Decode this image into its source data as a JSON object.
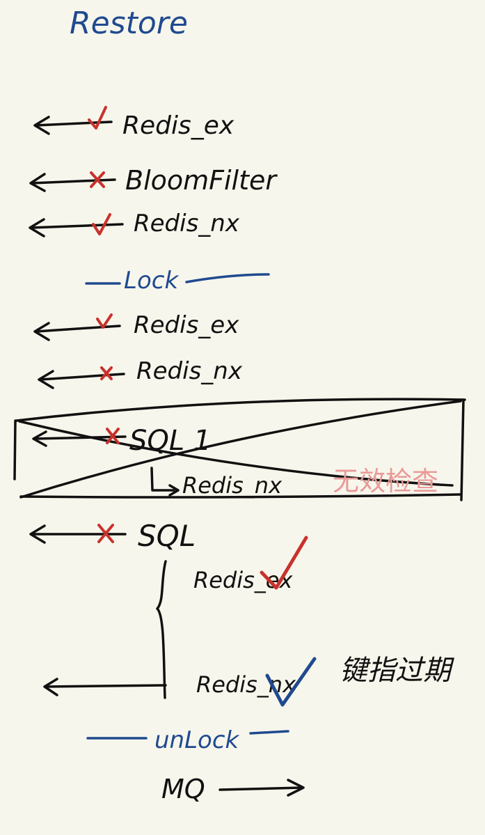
{
  "title": "Restore",
  "steps": [
    {
      "label": "Redis_ex",
      "mark": "check"
    },
    {
      "label": "BloomFilter",
      "mark": "cross"
    },
    {
      "label": "Redis_nx",
      "mark": "check"
    }
  ],
  "lock_label": "Lock",
  "locked_steps": [
    {
      "label": "Redis_ex",
      "mark": "check"
    },
    {
      "label": "Redis_nx",
      "mark": "cross"
    }
  ],
  "struck_block": {
    "sql_label": "SQL 1",
    "sub_label": "Redis_nx",
    "note": "无效检查"
  },
  "sql_label": "SQL",
  "branch": {
    "top_label": "Redis_ex",
    "bottom_label": "Redis_nx",
    "note": "键指过期"
  },
  "unlock_label": "unLock",
  "mq_label": "MQ",
  "colors": {
    "background": "#f7f6ec",
    "ink": "#111111",
    "blue": "#1f4a8f",
    "red": "#c8322b",
    "pink": "#e99a98"
  }
}
